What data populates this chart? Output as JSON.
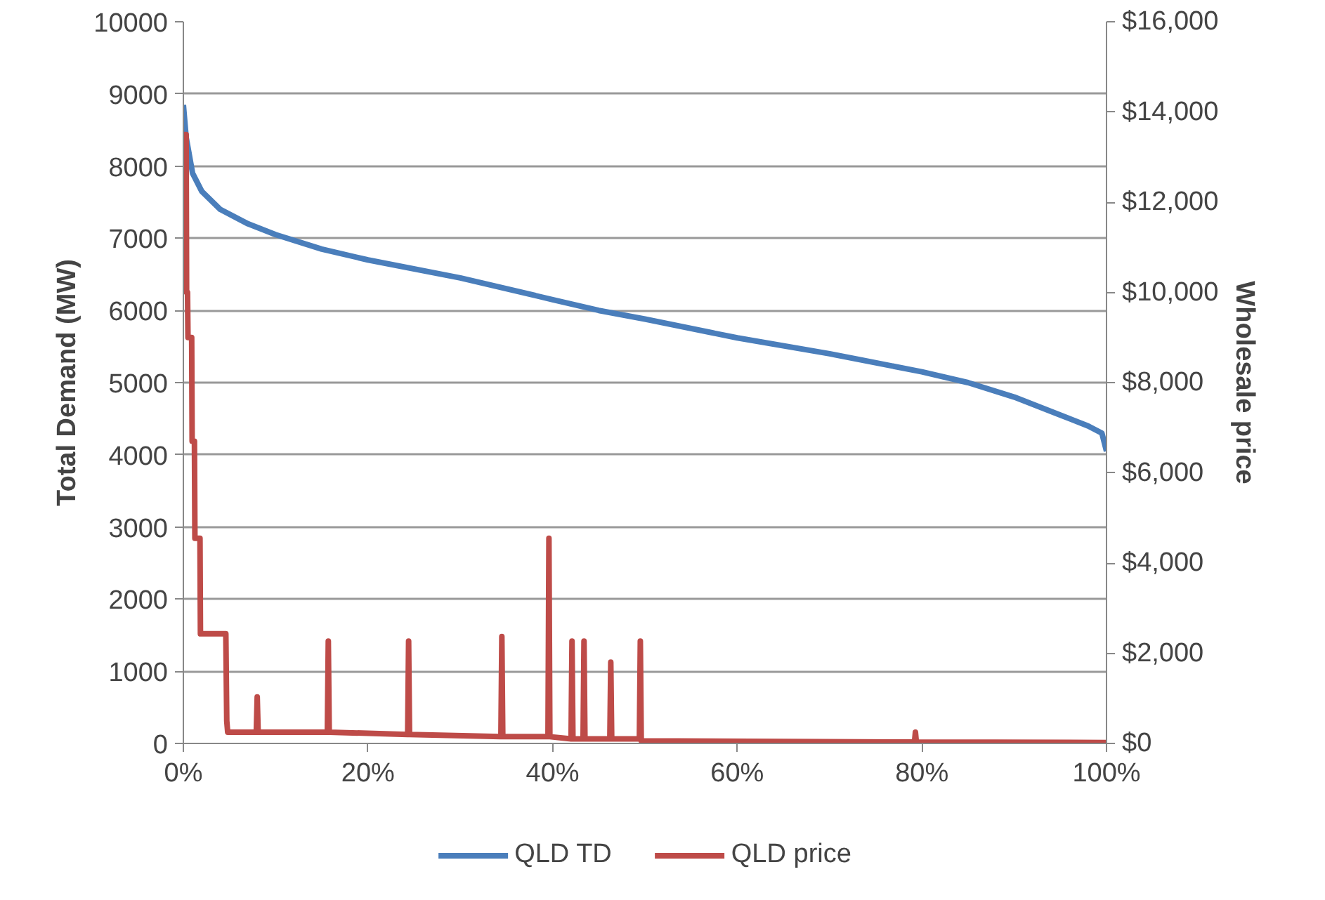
{
  "chart_data": {
    "type": "line",
    "ylabel": "Total Demand (MW)",
    "y2label": "Wholesale price",
    "xlim": [
      0,
      100
    ],
    "xticks": [
      {
        "value": 0,
        "label": "0%"
      },
      {
        "value": 20,
        "label": "20%"
      },
      {
        "value": 40,
        "label": "40%"
      },
      {
        "value": 60,
        "label": "60%"
      },
      {
        "value": 80,
        "label": "80%"
      },
      {
        "value": 100,
        "label": "100%"
      }
    ],
    "ylim": [
      0,
      10000
    ],
    "yticks": [
      0,
      1000,
      2000,
      3000,
      4000,
      5000,
      6000,
      7000,
      8000,
      9000,
      10000
    ],
    "y2lim": [
      0,
      16000
    ],
    "y2ticks": [
      {
        "value": 0,
        "label": "$0"
      },
      {
        "value": 2000,
        "label": "$2,000"
      },
      {
        "value": 4000,
        "label": "$4,000"
      },
      {
        "value": 6000,
        "label": "$6,000"
      },
      {
        "value": 8000,
        "label": "$8,000"
      },
      {
        "value": 10000,
        "label": "$10,000"
      },
      {
        "value": 12000,
        "label": "$12,000"
      },
      {
        "value": 14000,
        "label": "$14,000"
      },
      {
        "value": 16000,
        "label": "$16,000"
      }
    ],
    "grid": "y",
    "legend": "bottom",
    "marker": "none",
    "line_style": "solid",
    "series": [
      {
        "name": "QLD TD",
        "color": "#4a7ebb",
        "x": [
          0,
          0.3,
          1,
          2,
          4,
          7,
          10,
          15,
          20,
          30,
          40,
          45,
          50,
          60,
          70,
          80,
          85,
          90,
          95,
          98,
          99.5,
          100
        ],
        "values": [
          8850,
          8400,
          7900,
          7650,
          7400,
          7200,
          7050,
          6850,
          6700,
          6450,
          6150,
          6000,
          5880,
          5620,
          5400,
          5150,
          5000,
          4800,
          4550,
          4400,
          4300,
          4050
        ]
      },
      {
        "name": "QLD price",
        "color": "#be4b48",
        "axis": "y2",
        "x": [
          0,
          0.3,
          0.35,
          0.45,
          0.5,
          0.9,
          0.95,
          1.2,
          1.25,
          1.8,
          1.85,
          4.6,
          4.7,
          4.8,
          7.9,
          8.0,
          8.1,
          15.6,
          15.7,
          15.8,
          24.3,
          24.4,
          24.5,
          34.4,
          34.5,
          34.6,
          39.5,
          39.6,
          39.7,
          42.0,
          42.1,
          42.2,
          43.3,
          43.4,
          43.5,
          46.2,
          46.3,
          46.4,
          49.4,
          49.5,
          49.6,
          79.2,
          79.3,
          79.4,
          100
        ],
        "values": [
          13500,
          13500,
          10000,
          10000,
          9000,
          9000,
          6700,
          6700,
          4550,
          4550,
          2430,
          2430,
          500,
          250,
          250,
          1030,
          250,
          250,
          2270,
          250,
          200,
          2270,
          200,
          150,
          2370,
          150,
          150,
          4550,
          150,
          100,
          2270,
          100,
          100,
          2270,
          100,
          100,
          1800,
          100,
          100,
          2270,
          60,
          30,
          250,
          30,
          20
        ]
      }
    ]
  }
}
